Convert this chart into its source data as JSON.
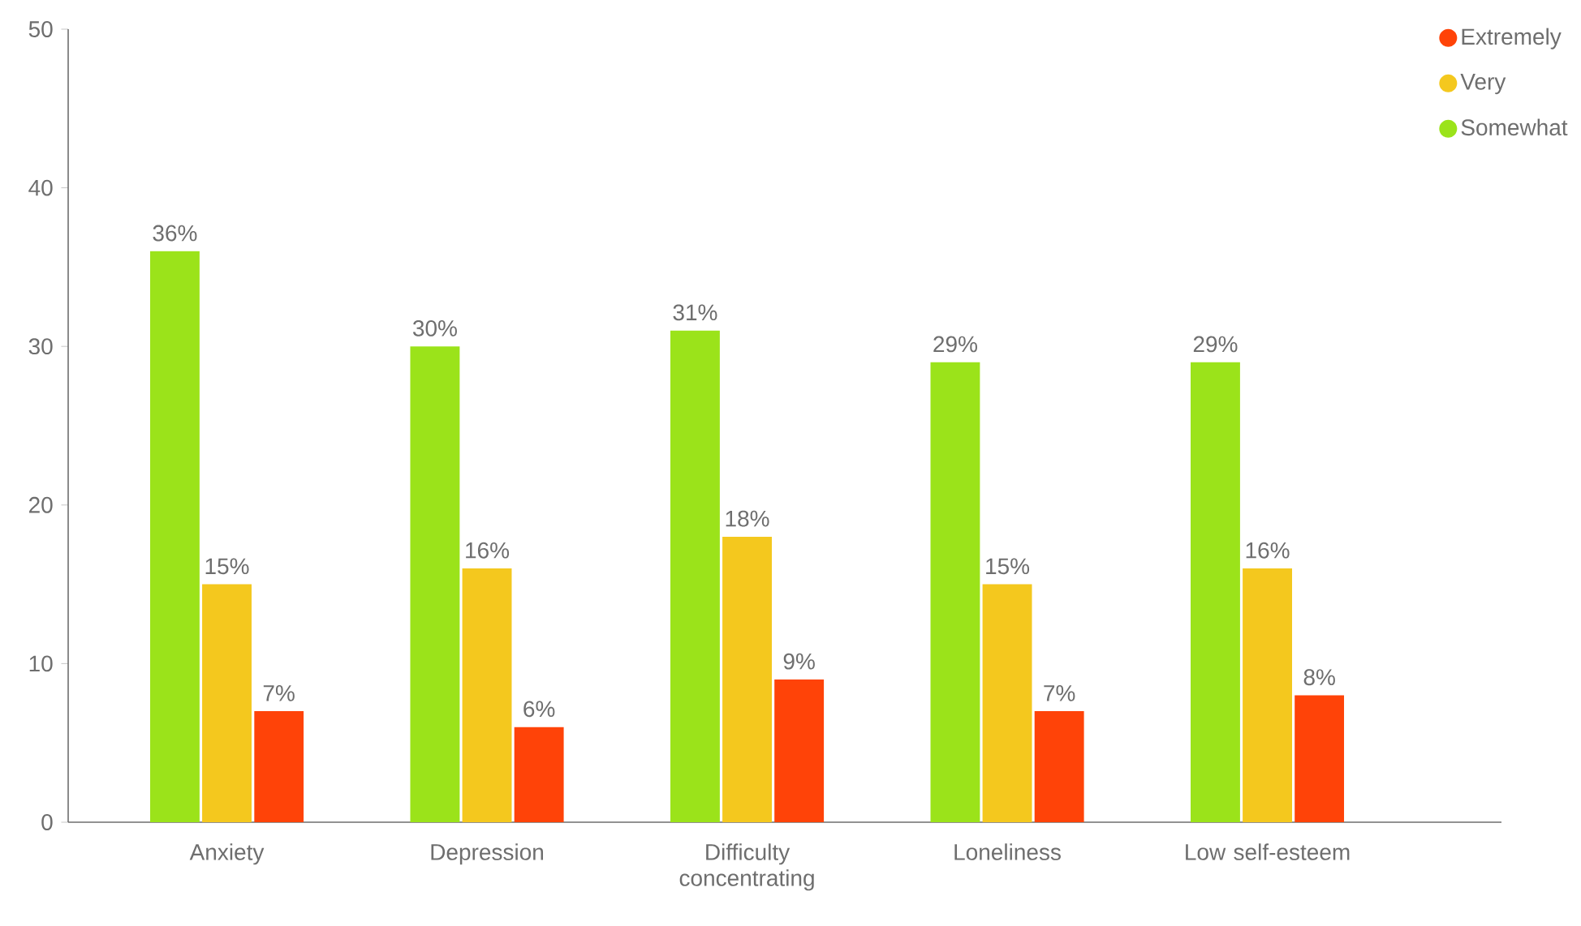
{
  "chart_data": {
    "type": "bar",
    "categories": [
      "Anxiety",
      "Depression",
      "Difficulty concentrating",
      "Loneliness",
      "Low self-esteem"
    ],
    "series": [
      {
        "name": "Somewhat",
        "color": "#9be31a",
        "values": [
          36,
          30,
          31,
          29,
          29
        ],
        "value_labels": [
          "36%",
          "30%",
          "31%",
          "29%",
          "29%"
        ]
      },
      {
        "name": "Very",
        "color": "#f4c81e",
        "values": [
          15,
          16,
          18,
          15,
          16
        ],
        "value_labels": [
          "15%",
          "16%",
          "18%",
          "15%",
          "16%"
        ]
      },
      {
        "name": "Extremely",
        "color": "#ff4308",
        "values": [
          7,
          6,
          9,
          7,
          8
        ],
        "value_labels": [
          "7%",
          "6%",
          "9%",
          "7%",
          "8%"
        ]
      }
    ],
    "ylim": [
      0,
      50
    ],
    "yticks": [
      0,
      10,
      20,
      30,
      40,
      50
    ],
    "legend": "top right"
  }
}
